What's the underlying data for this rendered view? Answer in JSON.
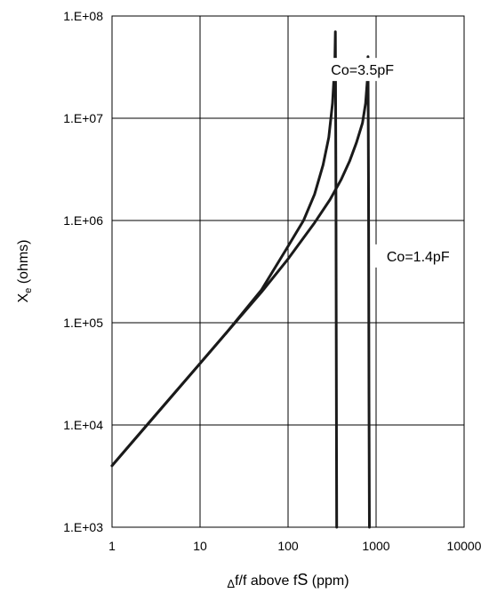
{
  "chart_data": {
    "type": "line",
    "xscale": "log",
    "yscale": "log",
    "xlim": [
      1,
      10000
    ],
    "ylim": [
      1000,
      100000000
    ],
    "grid": true,
    "legend": "none",
    "xlabel": {
      "delta": "Δ",
      "text": "f/f above f",
      "sub": "S",
      "unit": " (ppm)"
    },
    "ylabel": {
      "main": "X",
      "sub": "e",
      "unit": " (ohms)"
    },
    "x_ticks": [
      {
        "value": 1,
        "label": "1"
      },
      {
        "value": 10,
        "label": "10"
      },
      {
        "value": 100,
        "label": "100"
      },
      {
        "value": 1000,
        "label": "1000"
      },
      {
        "value": 10000,
        "label": "10000"
      }
    ],
    "y_ticks": [
      {
        "value": 1000,
        "label": "1.E+03"
      },
      {
        "value": 10000,
        "label": "1.E+04"
      },
      {
        "value": 100000,
        "label": "1.E+05"
      },
      {
        "value": 1000000,
        "label": "1.E+06"
      },
      {
        "value": 10000000,
        "label": "1.E+07"
      },
      {
        "value": 100000000,
        "label": "1.E+08"
      }
    ],
    "series": [
      {
        "name": "Co=3.5pF",
        "color": "#1a1a1a",
        "x": [
          1,
          2,
          5,
          10,
          20,
          50,
          100,
          150,
          200,
          250,
          290,
          320,
          340,
          345,
          350,
          352,
          355,
          357
        ],
        "y": [
          4000,
          8000,
          20000,
          40000,
          80000,
          210000,
          560000,
          1000000,
          1800000,
          3500000,
          6500000,
          14000000,
          35000000,
          70000000,
          1400000,
          180000,
          5000,
          1000
        ]
      },
      {
        "name": "Co=1.4pF",
        "color": "#1a1a1a",
        "x": [
          1,
          2,
          5,
          10,
          20,
          50,
          100,
          200,
          300,
          400,
          500,
          600,
          700,
          760,
          800,
          810,
          820,
          830,
          840
        ],
        "y": [
          4000,
          8000,
          20000,
          40000,
          80000,
          200000,
          420000,
          950000,
          1600000,
          2500000,
          3800000,
          5800000,
          9000000,
          14000000,
          25000000,
          40000000,
          2000000,
          20000,
          1000
        ]
      }
    ],
    "annotations": [
      {
        "text": "Co=3.5pF",
        "x": 700,
        "y": 30000000
      },
      {
        "text": "Co=1.4pF",
        "x": 3000,
        "y": 450000
      }
    ]
  }
}
